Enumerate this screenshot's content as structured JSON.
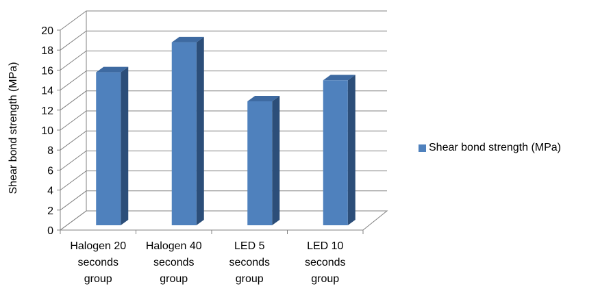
{
  "chart_data": {
    "type": "bar",
    "three_d": true,
    "categories": [
      [
        "Halogen 20",
        "seconds",
        "group"
      ],
      [
        "Halogen 40",
        "seconds",
        "group"
      ],
      [
        "LED 5",
        "seconds",
        "group"
      ],
      [
        "LED 10",
        "seconds",
        "group"
      ]
    ],
    "series": [
      {
        "name": "Shear bond strength (MPa)",
        "values": [
          15.3,
          18.3,
          12.4,
          14.5
        ]
      }
    ],
    "ylabel": "Shear bond strength (MPa)",
    "ylim": [
      0,
      20
    ],
    "ytick_step": 2,
    "grid": true,
    "legend_position": "right",
    "colors": {
      "front": "#4f81bd",
      "side": "#2c4e79",
      "top": "#3e6aa1",
      "grid": "#808080"
    }
  }
}
